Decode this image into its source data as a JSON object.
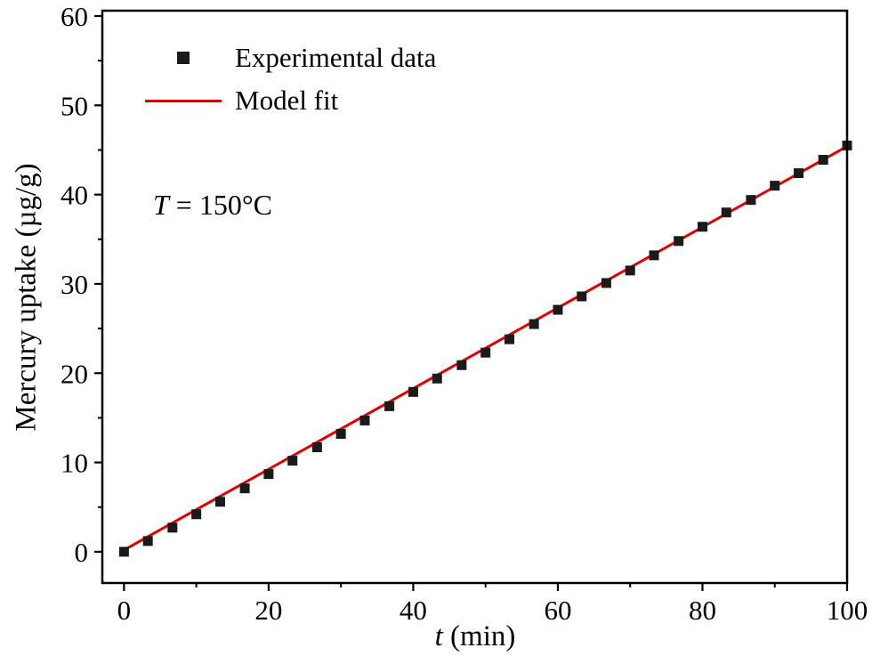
{
  "chart_data": {
    "type": "scatter",
    "title": "",
    "xlabel_var": "t",
    "xlabel_rest": " (min)",
    "ylabel": "Mercury uptake (µg/g)",
    "annotation_var": "T",
    "annotation_rest": " = 150°C",
    "xlim": [
      -3,
      100
    ],
    "ylim": [
      -3.5,
      60.6
    ],
    "x_ticks": [
      0,
      20,
      40,
      60,
      80,
      100
    ],
    "y_ticks": [
      0,
      10,
      20,
      30,
      40,
      50,
      60
    ],
    "x_minor_ticks": [
      10,
      30,
      50,
      70,
      90
    ],
    "y_minor_ticks": [
      5,
      15,
      25,
      35,
      45,
      55
    ],
    "legend": [
      {
        "label": "Experimental data",
        "marker": "square"
      },
      {
        "label": "Model fit",
        "marker": "line"
      }
    ],
    "series": [
      {
        "name": "Experimental data",
        "type": "scatter",
        "t": [
          0,
          3.3,
          6.7,
          10,
          13.3,
          16.7,
          20,
          23.3,
          26.7,
          30,
          33.3,
          36.7,
          40,
          43.3,
          46.7,
          50,
          53.3,
          56.7,
          60,
          63.3,
          66.7,
          70,
          73.3,
          76.7,
          80,
          83.3,
          86.7,
          90,
          93.3,
          96.7,
          100
        ],
        "y": [
          0.0,
          1.2,
          2.7,
          4.2,
          5.6,
          7.1,
          8.7,
          10.2,
          11.7,
          13.2,
          14.7,
          16.3,
          17.9,
          19.4,
          20.9,
          22.3,
          23.8,
          25.5,
          27.1,
          28.6,
          30.1,
          31.5,
          33.2,
          34.8,
          36.4,
          38.0,
          39.4,
          41.0,
          42.4,
          43.9,
          45.5
        ]
      },
      {
        "name": "Model fit",
        "type": "line",
        "slope": 0.452,
        "intercept": 0.2,
        "t_start": 0,
        "t_end": 100
      }
    ],
    "colors": {
      "data": "#1a1a1a",
      "fit": "#e00000",
      "axis": "#000000"
    }
  }
}
